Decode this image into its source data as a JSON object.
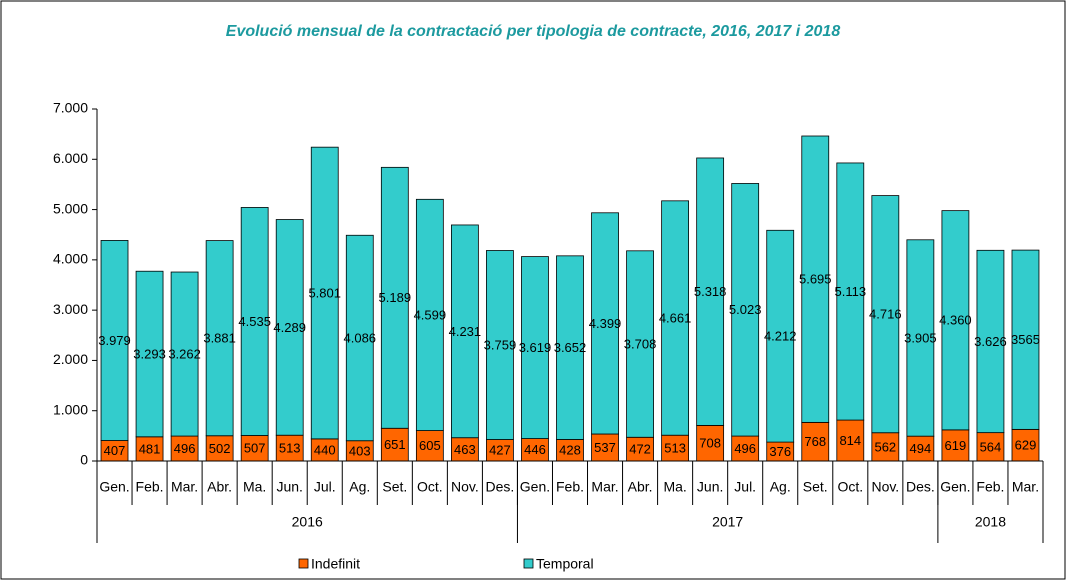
{
  "chart_data": {
    "type": "stacked_bar",
    "title": "Evolució mensual de la contractació per tipologia de contracte, 2016, 2017 i 2018",
    "categories": [
      "Gen.",
      "Feb.",
      "Mar.",
      "Abr.",
      "Ma.",
      "Jun.",
      "Jul.",
      "Ag.",
      "Set.",
      "Oct.",
      "Nov.",
      "Des.",
      "Gen.",
      "Feb.",
      "Mar.",
      "Abr.",
      "Ma.",
      "Jun.",
      "Jul.",
      "Ag.",
      "Set.",
      "Oct.",
      "Nov.",
      "Des.",
      "Gen.",
      "Feb.",
      "Mar."
    ],
    "category_groups": [
      {
        "label": "2016",
        "size": 12
      },
      {
        "label": "2017",
        "size": 12
      },
      {
        "label": "2018",
        "size": 3
      }
    ],
    "series": [
      {
        "name": "Indefinit",
        "color": "#ff6600",
        "values": [
          407,
          481,
          496,
          502,
          507,
          513,
          440,
          403,
          651,
          605,
          463,
          427,
          446,
          428,
          537,
          472,
          513,
          708,
          496,
          376,
          768,
          814,
          562,
          494,
          619,
          564,
          629
        ]
      },
      {
        "name": "Temporal",
        "color": "#33cccc",
        "values": [
          3979,
          3293,
          3262,
          3881,
          4535,
          4289,
          5801,
          4086,
          5189,
          4599,
          4231,
          3759,
          3619,
          3652,
          4399,
          3708,
          4661,
          5318,
          5023,
          4212,
          5695,
          5113,
          4716,
          3905,
          4360,
          3626,
          3565
        ],
        "value_labels": [
          "3.979",
          "3.293",
          "3.262",
          "3.881",
          "4.535",
          "4.289",
          "5.801",
          "4.086",
          "5.189",
          "4.599",
          "4.231",
          "3.759",
          "3.619",
          "3.652",
          "4.399",
          "3.708",
          "4.661",
          "5.318",
          "5.023",
          "4.212",
          "5.695",
          "5.113",
          "4.716",
          "3.905",
          "4.360",
          "3.626",
          "3565"
        ]
      }
    ],
    "ylim": [
      0,
      7000
    ],
    "yticks": [
      0,
      {
        "value": 1000,
        "label": "1.000"
      },
      {
        "value": 2000,
        "label": "2.000"
      },
      {
        "value": 3000,
        "label": "3.000"
      },
      {
        "value": 4000,
        "label": "4.000"
      },
      {
        "value": 5000,
        "label": "5.000"
      },
      {
        "value": 6000,
        "label": "6.000"
      },
      {
        "value": 7000,
        "label": "7.000"
      }
    ],
    "grid": false,
    "legend": "bottom"
  }
}
